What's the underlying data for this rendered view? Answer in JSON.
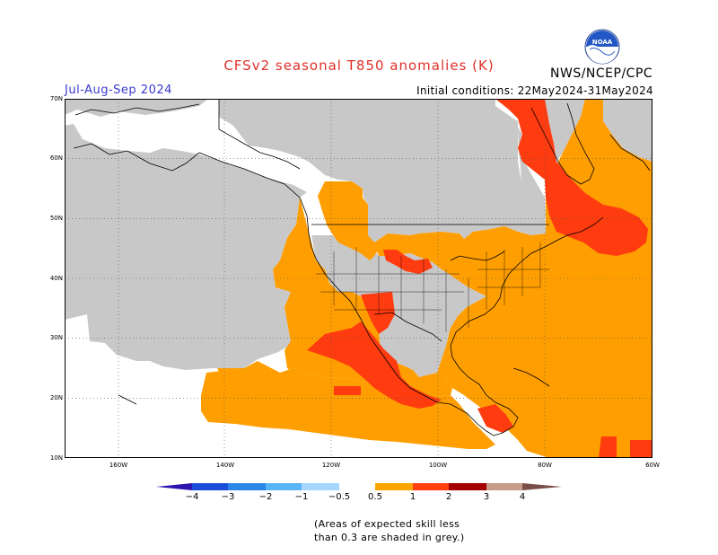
{
  "header": {
    "title": "CFSv2 seasonal T850 anomalies (K)",
    "period": "Jul-Aug-Sep 2024",
    "initial_conditions": "Initial conditions: 22May2024-31May2024",
    "agency": "NWS/NCEP/CPC",
    "logo_text": "NOAA"
  },
  "map": {
    "latitude_labels": [
      "70N",
      "60N",
      "50N",
      "40N",
      "30N",
      "20N",
      "10N"
    ],
    "longitude_labels": [
      "160W",
      "140W",
      "120W",
      "100W",
      "80W",
      "60W"
    ],
    "colors": {
      "grey_low_skill": "#c8c8c8",
      "anomaly_0_5_to_1": "#ff9e00",
      "anomaly_1_to_2": "#ff3b10",
      "land_outline": "#000000"
    }
  },
  "colorbar": {
    "labels": [
      "−4",
      "−3",
      "−2",
      "−1",
      "−0.5",
      "0.5",
      "1",
      "2",
      "3",
      "4"
    ],
    "colors": [
      "#2d16b0",
      "#1a4ed8",
      "#2b86e8",
      "#5ab4f8",
      "#a6d8ff",
      "#ffffff",
      "#ffa500",
      "#ff3f10",
      "#a50000",
      "#c89a88",
      "#7a4e48"
    ]
  },
  "note": {
    "line1": "(Areas of expected skill less",
    "line2": "than 0.3 are shaded in grey.)"
  }
}
